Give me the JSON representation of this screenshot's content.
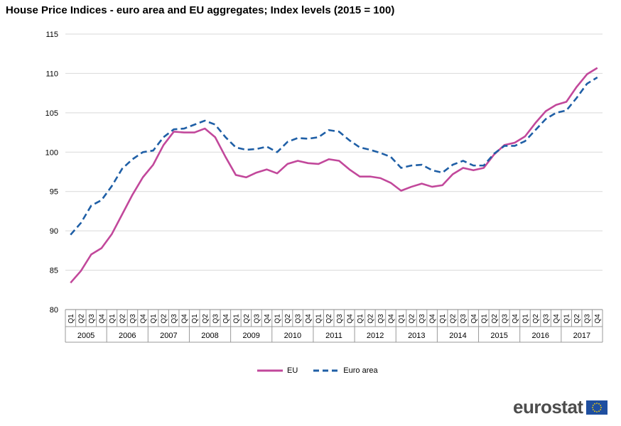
{
  "chart_data": {
    "type": "line",
    "title": "House Price Indices - euro area and EU aggregates; Index levels (2015 = 100)",
    "xlabel": "",
    "ylabel": "",
    "ylim": [
      80,
      115
    ],
    "yticks": [
      80,
      85,
      90,
      95,
      100,
      105,
      110,
      115
    ],
    "years": [
      "2005",
      "2006",
      "2007",
      "2008",
      "2009",
      "2010",
      "2011",
      "2012",
      "2013",
      "2014",
      "2015",
      "2016",
      "2017"
    ],
    "quarters": [
      "Q1",
      "Q2",
      "Q3",
      "Q4"
    ],
    "grid": true,
    "legend_position": "bottom",
    "series": [
      {
        "name": "EU",
        "color": "#c2489b",
        "style": "solid",
        "values": [
          83.4,
          84.9,
          87.0,
          87.8,
          89.6,
          92.1,
          94.6,
          96.8,
          98.4,
          100.9,
          102.6,
          102.5,
          102.5,
          103.0,
          101.9,
          99.4,
          97.1,
          96.8,
          97.4,
          97.8,
          97.3,
          98.5,
          98.9,
          98.6,
          98.5,
          99.1,
          98.9,
          97.8,
          96.9,
          96.9,
          96.7,
          96.1,
          95.1,
          95.6,
          96.0,
          95.6,
          95.8,
          97.2,
          98.0,
          97.7,
          98.0,
          99.7,
          100.9,
          101.2,
          102.0,
          103.7,
          105.2,
          106.0,
          106.4,
          108.3,
          109.9,
          110.7
        ]
      },
      {
        "name": "Euro area",
        "color": "#1f5fa6",
        "style": "dashed",
        "values": [
          89.5,
          91.0,
          93.2,
          93.9,
          95.7,
          97.9,
          99.1,
          100.0,
          100.2,
          101.9,
          102.9,
          103.0,
          103.5,
          104.0,
          103.5,
          101.9,
          100.6,
          100.3,
          100.4,
          100.7,
          100.0,
          101.3,
          101.8,
          101.7,
          101.9,
          102.8,
          102.6,
          101.5,
          100.6,
          100.3,
          99.9,
          99.4,
          98.0,
          98.3,
          98.4,
          97.7,
          97.4,
          98.4,
          98.9,
          98.3,
          98.3,
          99.8,
          100.8,
          100.8,
          101.4,
          102.8,
          104.2,
          105.0,
          105.3,
          106.9,
          108.7,
          109.5
        ]
      }
    ]
  },
  "branding": {
    "logo_text": "eurostat"
  }
}
